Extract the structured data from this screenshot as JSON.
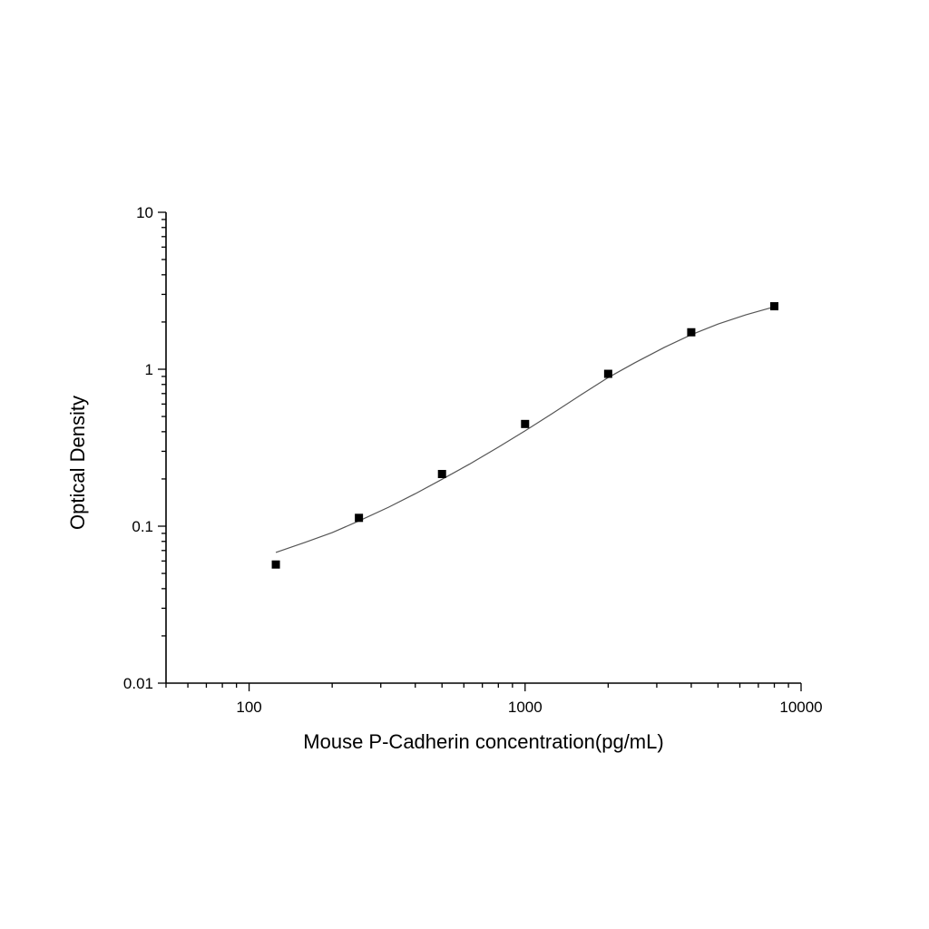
{
  "chart_data": {
    "type": "scatter",
    "title": "",
    "xlabel": "Mouse P-Cadherin concentration(pg/mL)",
    "ylabel": "Optical Density",
    "xscale": "log",
    "yscale": "log",
    "xlim": [
      50,
      10000
    ],
    "ylim": [
      0.01,
      10
    ],
    "x_tick_labels": [
      "100",
      "1000",
      "10000"
    ],
    "y_tick_labels": [
      "0.01",
      "0.1",
      "1",
      "10"
    ],
    "grid": false,
    "legend": "none",
    "marker": "square",
    "marker_color": "#000000",
    "curve_color": "#555555",
    "series": [
      {
        "points": [
          {
            "x": 125,
            "y": 0.057
          },
          {
            "x": 250,
            "y": 0.113
          },
          {
            "x": 500,
            "y": 0.215
          },
          {
            "x": 1000,
            "y": 0.448
          },
          {
            "x": 2000,
            "y": 0.935
          },
          {
            "x": 4000,
            "y": 1.72
          },
          {
            "x": 8000,
            "y": 2.52
          }
        ]
      }
    ],
    "fit_curve": {
      "x": [
        125,
        160,
        200,
        250,
        320,
        400,
        500,
        630,
        800,
        1000,
        1250,
        1600,
        2000,
        2500,
        3200,
        4000,
        5000,
        6300,
        8000
      ],
      "y": [
        0.068,
        0.079,
        0.091,
        0.108,
        0.132,
        0.161,
        0.199,
        0.249,
        0.319,
        0.405,
        0.52,
        0.69,
        0.885,
        1.1,
        1.38,
        1.66,
        1.94,
        2.22,
        2.5
      ]
    }
  }
}
